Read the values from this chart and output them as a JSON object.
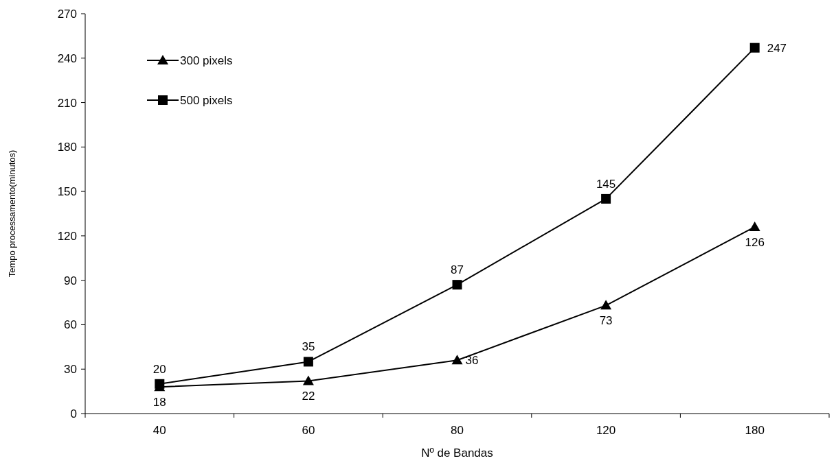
{
  "chart_data": {
    "type": "line",
    "xlabel": "Nº de Bandas",
    "ylabel": "Tempo processamento(minutos)",
    "categories": [
      "40",
      "60",
      "80",
      "120",
      "180"
    ],
    "series": [
      {
        "name": "300 pixels",
        "color": "#000000",
        "marker": "triangle",
        "values": [
          18,
          22,
          36,
          73,
          126
        ]
      },
      {
        "name": "500 pixels",
        "color": "#000000",
        "marker": "square",
        "values": [
          20,
          35,
          87,
          145,
          247
        ]
      }
    ],
    "ylim": [
      0,
      270
    ],
    "yticks": [
      0,
      30,
      60,
      90,
      120,
      150,
      180,
      210,
      240,
      270
    ],
    "data_labels": true,
    "legend": "top left",
    "grid": false
  }
}
